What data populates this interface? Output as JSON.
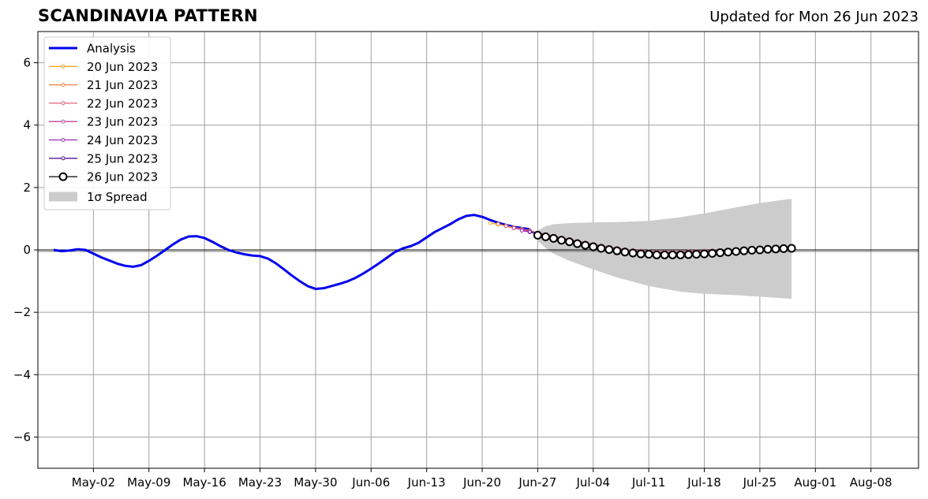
{
  "title": "SCANDINAVIA PATTERN",
  "updated": "Updated for Mon 26 Jun 2023",
  "chart_data": {
    "type": "line",
    "title": "SCANDINAVIA PATTERN",
    "xlabel": "",
    "ylabel": "",
    "ylim": [
      -7,
      7
    ],
    "xlim": [
      "2023-04-25",
      "2023-08-14"
    ],
    "grid": true,
    "legend_position": "top-left",
    "yticks": [
      6,
      4,
      2,
      0,
      -2,
      -4,
      -6
    ],
    "ytick_labels": [
      "6",
      "4",
      "2",
      "0",
      "−2",
      "−4",
      "−6"
    ],
    "xticks": [
      "2023-05-02",
      "2023-05-09",
      "2023-05-16",
      "2023-05-23",
      "2023-05-30",
      "2023-06-06",
      "2023-06-13",
      "2023-06-20",
      "2023-06-27",
      "2023-07-04",
      "2023-07-11",
      "2023-07-18",
      "2023-07-25",
      "2023-08-01",
      "2023-08-08"
    ],
    "xtick_labels": [
      "May-02",
      "May-09",
      "May-16",
      "May-23",
      "May-30",
      "Jun-06",
      "Jun-13",
      "Jun-20",
      "Jun-27",
      "Jul-04",
      "Jul-11",
      "Jul-18",
      "Jul-25",
      "Aug-01",
      "Aug-08"
    ],
    "series": [
      {
        "name": "Analysis",
        "color": "#0000ee",
        "x": [
          "2023-04-27",
          "2023-04-28",
          "2023-04-29",
          "2023-04-30",
          "2023-05-01",
          "2023-05-02",
          "2023-05-03",
          "2023-05-04",
          "2023-05-05",
          "2023-05-06",
          "2023-05-07",
          "2023-05-08",
          "2023-05-09",
          "2023-05-10",
          "2023-05-11",
          "2023-05-12",
          "2023-05-13",
          "2023-05-14",
          "2023-05-15",
          "2023-05-16",
          "2023-05-17",
          "2023-05-18",
          "2023-05-19",
          "2023-05-20",
          "2023-05-21",
          "2023-05-22",
          "2023-05-23",
          "2023-05-24",
          "2023-05-25",
          "2023-05-26",
          "2023-05-27",
          "2023-05-28",
          "2023-05-29",
          "2023-05-30",
          "2023-05-31",
          "2023-06-01",
          "2023-06-02",
          "2023-06-03",
          "2023-06-04",
          "2023-06-05",
          "2023-06-06",
          "2023-06-07",
          "2023-06-08",
          "2023-06-09",
          "2023-06-10",
          "2023-06-11",
          "2023-06-12",
          "2023-06-13",
          "2023-06-14",
          "2023-06-15",
          "2023-06-16",
          "2023-06-17",
          "2023-06-18",
          "2023-06-19",
          "2023-06-20",
          "2023-06-21",
          "2023-06-22",
          "2023-06-23",
          "2023-06-24",
          "2023-06-25",
          "2023-06-26"
        ],
        "y": [
          0.0,
          -0.04,
          -0.02,
          0.02,
          0.0,
          -0.12,
          -0.24,
          -0.34,
          -0.44,
          -0.51,
          -0.54,
          -0.49,
          -0.35,
          -0.19,
          -0.01,
          0.17,
          0.33,
          0.43,
          0.44,
          0.38,
          0.26,
          0.12,
          0.0,
          -0.08,
          -0.14,
          -0.18,
          -0.2,
          -0.28,
          -0.43,
          -0.62,
          -0.82,
          -1.0,
          -1.16,
          -1.25,
          -1.23,
          -1.16,
          -1.09,
          -1.01,
          -0.9,
          -0.76,
          -0.6,
          -0.43,
          -0.25,
          -0.07,
          0.05,
          0.12,
          0.23,
          0.4,
          0.57,
          0.7,
          0.83,
          0.98,
          1.09,
          1.12,
          1.06,
          0.96,
          0.87,
          0.8,
          0.74,
          0.7,
          0.66
        ]
      },
      {
        "name": "20 Jun 2023",
        "color": "#f5a623",
        "x": [
          "2023-06-21",
          "2023-06-22",
          "2023-06-23",
          "2023-06-24",
          "2023-06-25",
          "2023-06-26"
        ],
        "y": [
          0.86,
          0.82,
          0.77,
          0.72,
          0.67,
          0.62
        ]
      },
      {
        "name": "21 Jun 2023",
        "color": "#f07f3a",
        "x": [
          "2023-06-22",
          "2023-06-23",
          "2023-06-24",
          "2023-06-25",
          "2023-06-26"
        ],
        "y": [
          0.83,
          0.77,
          0.71,
          0.66,
          0.61
        ]
      },
      {
        "name": "22 Jun 2023",
        "color": "#e0607a",
        "x": [
          "2023-06-23",
          "2023-06-24",
          "2023-06-25",
          "2023-06-26",
          "2023-06-27",
          "2023-06-28",
          "2023-06-29",
          "2023-06-30",
          "2023-07-01",
          "2023-07-02",
          "2023-07-03",
          "2023-07-04",
          "2023-07-05",
          "2023-07-06",
          "2023-07-07",
          "2023-07-08",
          "2023-07-09",
          "2023-07-10",
          "2023-07-11",
          "2023-07-12",
          "2023-07-13",
          "2023-07-14",
          "2023-07-15",
          "2023-07-16",
          "2023-07-17",
          "2023-07-18",
          "2023-07-19"
        ],
        "y": [
          0.76,
          0.7,
          0.66,
          0.62,
          0.55,
          0.5,
          0.44,
          0.39,
          0.34,
          0.28,
          0.23,
          0.18,
          0.13,
          0.09,
          0.05,
          0.02,
          -0.01,
          -0.03,
          -0.05,
          -0.06,
          -0.06,
          -0.06,
          -0.06,
          -0.05,
          -0.04,
          -0.03,
          -0.02
        ]
      },
      {
        "name": "23 Jun 2023",
        "color": "#c2449a",
        "x": [
          "2023-06-24",
          "2023-06-25",
          "2023-06-26",
          "2023-06-27",
          "2023-06-28",
          "2023-06-29",
          "2023-06-30",
          "2023-07-01",
          "2023-07-02",
          "2023-07-03",
          "2023-07-04",
          "2023-07-05",
          "2023-07-06",
          "2023-07-07",
          "2023-07-08",
          "2023-07-09",
          "2023-07-10",
          "2023-07-11",
          "2023-07-12",
          "2023-07-13",
          "2023-07-14",
          "2023-07-15",
          "2023-07-16",
          "2023-07-17",
          "2023-07-18",
          "2023-07-19",
          "2023-07-20"
        ],
        "y": [
          0.7,
          0.65,
          0.6,
          0.54,
          0.48,
          0.42,
          0.37,
          0.31,
          0.26,
          0.21,
          0.16,
          0.11,
          0.07,
          0.03,
          0.0,
          -0.03,
          -0.05,
          -0.07,
          -0.08,
          -0.08,
          -0.08,
          -0.08,
          -0.07,
          -0.06,
          -0.05,
          -0.04,
          -0.03
        ]
      },
      {
        "name": "24 Jun 2023",
        "color": "#9b2db0",
        "x": [
          "2023-06-25",
          "2023-06-26",
          "2023-06-27",
          "2023-06-28",
          "2023-06-29",
          "2023-06-30",
          "2023-07-01",
          "2023-07-02",
          "2023-07-03",
          "2023-07-04",
          "2023-07-05",
          "2023-07-06",
          "2023-07-07",
          "2023-07-08",
          "2023-07-09",
          "2023-07-10",
          "2023-07-11",
          "2023-07-12",
          "2023-07-13",
          "2023-07-14",
          "2023-07-15",
          "2023-07-16",
          "2023-07-17",
          "2023-07-18",
          "2023-07-19",
          "2023-07-20",
          "2023-07-21"
        ],
        "y": [
          0.62,
          0.57,
          0.51,
          0.45,
          0.39,
          0.34,
          0.28,
          0.23,
          0.18,
          0.13,
          0.08,
          0.04,
          0.01,
          -0.03,
          -0.05,
          -0.07,
          -0.09,
          -0.1,
          -0.1,
          -0.1,
          -0.1,
          -0.09,
          -0.08,
          -0.07,
          -0.06,
          -0.05,
          -0.04
        ]
      },
      {
        "name": "25 Jun 2023",
        "color": "#5a1a9a",
        "x": [
          "2023-06-26",
          "2023-06-27",
          "2023-06-28",
          "2023-06-29",
          "2023-06-30",
          "2023-07-01",
          "2023-07-02",
          "2023-07-03",
          "2023-07-04",
          "2023-07-05",
          "2023-07-06",
          "2023-07-07",
          "2023-07-08",
          "2023-07-09",
          "2023-07-10",
          "2023-07-11",
          "2023-07-12",
          "2023-07-13",
          "2023-07-14",
          "2023-07-15",
          "2023-07-16",
          "2023-07-17",
          "2023-07-18",
          "2023-07-19",
          "2023-07-20",
          "2023-07-21",
          "2023-07-22"
        ],
        "y": [
          0.58,
          0.52,
          0.46,
          0.4,
          0.34,
          0.29,
          0.23,
          0.18,
          0.13,
          0.08,
          0.04,
          0.0,
          -0.03,
          -0.06,
          -0.08,
          -0.1,
          -0.11,
          -0.12,
          -0.12,
          -0.12,
          -0.11,
          -0.1,
          -0.09,
          -0.08,
          -0.07,
          -0.06,
          -0.05
        ]
      },
      {
        "name": "26 Jun 2023",
        "color": "#000000",
        "x": [
          "2023-06-27",
          "2023-06-28",
          "2023-06-29",
          "2023-06-30",
          "2023-07-01",
          "2023-07-02",
          "2023-07-03",
          "2023-07-04",
          "2023-07-05",
          "2023-07-06",
          "2023-07-07",
          "2023-07-08",
          "2023-07-09",
          "2023-07-10",
          "2023-07-11",
          "2023-07-12",
          "2023-07-13",
          "2023-07-14",
          "2023-07-15",
          "2023-07-16",
          "2023-07-17",
          "2023-07-18",
          "2023-07-19",
          "2023-07-20",
          "2023-07-21",
          "2023-07-22",
          "2023-07-23",
          "2023-07-24",
          "2023-07-25",
          "2023-07-26",
          "2023-07-27",
          "2023-07-28",
          "2023-07-29"
        ],
        "y": [
          0.47,
          0.42,
          0.37,
          0.31,
          0.26,
          0.2,
          0.15,
          0.1,
          0.05,
          0.01,
          -0.03,
          -0.07,
          -0.1,
          -0.13,
          -0.14,
          -0.16,
          -0.16,
          -0.16,
          -0.16,
          -0.15,
          -0.14,
          -0.13,
          -0.11,
          -0.09,
          -0.07,
          -0.05,
          -0.03,
          -0.01,
          0.0,
          0.02,
          0.03,
          0.04,
          0.05
        ]
      }
    ],
    "spread": {
      "name": "1σ Spread",
      "color": "#cccccc",
      "x": [
        "2023-06-27",
        "2023-06-28",
        "2023-06-29",
        "2023-07-01",
        "2023-07-04",
        "2023-07-07",
        "2023-07-11",
        "2023-07-15",
        "2023-07-18",
        "2023-07-22",
        "2023-07-25",
        "2023-07-29"
      ],
      "upper": [
        0.62,
        0.76,
        0.82,
        0.86,
        0.88,
        0.89,
        0.93,
        1.05,
        1.17,
        1.36,
        1.5,
        1.64
      ],
      "lower": [
        0.28,
        0.06,
        -0.12,
        -0.35,
        -0.63,
        -0.88,
        -1.16,
        -1.34,
        -1.41,
        -1.45,
        -1.5,
        -1.57
      ]
    }
  }
}
